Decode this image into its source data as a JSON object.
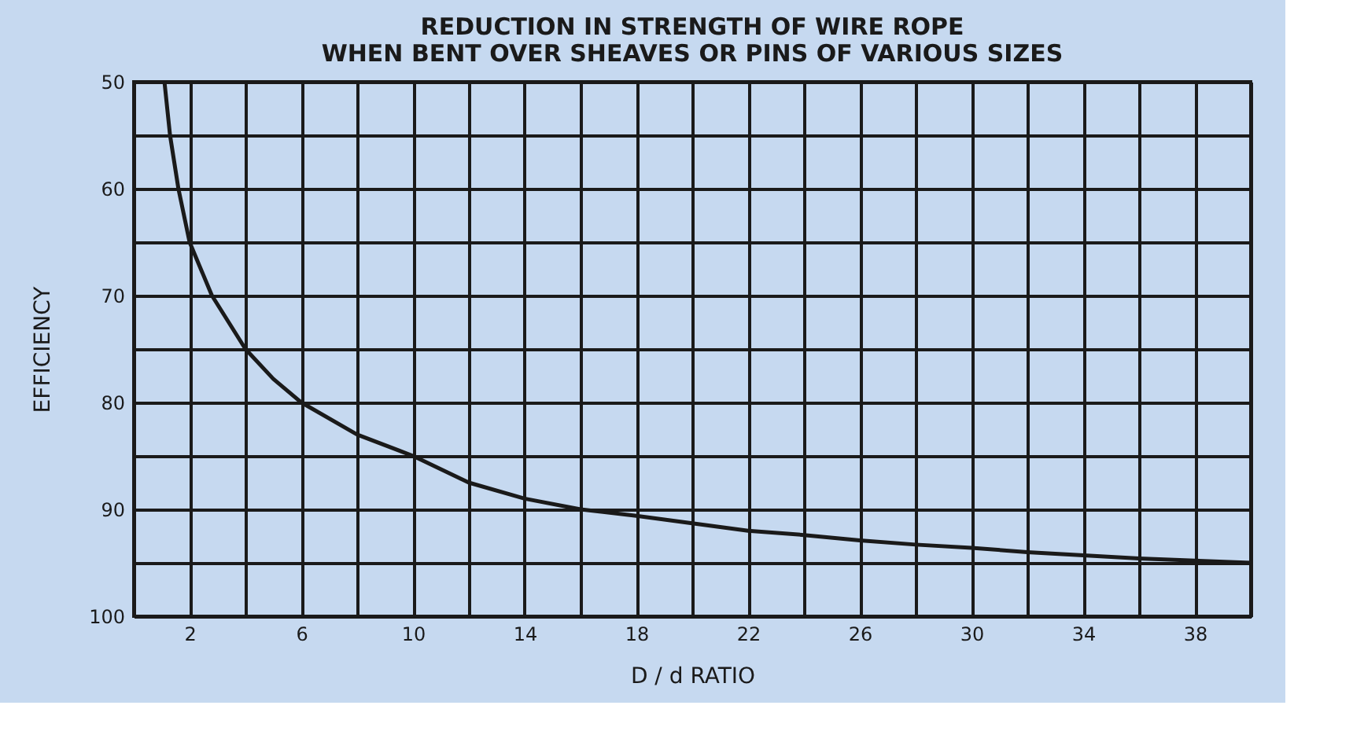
{
  "chart_data": {
    "type": "line",
    "title": [
      "REDUCTION IN STRENGTH OF WIRE ROPE",
      "WHEN BENT OVER SHEAVES OR PINS OF VARIOUS SIZES"
    ],
    "xlabel": "D / d RATIO",
    "ylabel": "EFFICIENCY",
    "series": [
      {
        "color": "#1a1a1a",
        "x": [
          1.1,
          1.3,
          1.6,
          2,
          2.8,
          4,
          5,
          6,
          8,
          10,
          12,
          14,
          16,
          18,
          20,
          22,
          24,
          26,
          28,
          30,
          32,
          34,
          36,
          38,
          40
        ],
        "values": [
          50,
          55,
          60,
          65,
          70,
          75,
          77.8,
          80,
          83,
          85,
          87.5,
          89,
          90,
          90.6,
          91.3,
          92,
          92.4,
          92.9,
          93.3,
          93.6,
          94,
          94.3,
          94.6,
          94.8,
          95
        ]
      }
    ],
    "xlim": [
      0,
      40
    ],
    "ylim": [
      100,
      50
    ],
    "xticks": [
      {
        "value": 0,
        "label": null
      },
      2,
      {
        "value": 4,
        "label": null
      },
      6,
      {
        "value": 8,
        "label": null
      },
      10,
      {
        "value": 12,
        "label": null
      },
      14,
      {
        "value": 16,
        "label": null
      },
      18,
      {
        "value": 20,
        "label": null
      },
      22,
      {
        "value": 24,
        "label": null
      },
      26,
      {
        "value": 28,
        "label": null
      },
      30,
      {
        "value": 32,
        "label": null
      },
      34,
      {
        "value": 36,
        "label": null
      },
      38,
      {
        "value": 40,
        "label": null
      }
    ],
    "yticks": [
      50,
      {
        "value": 55,
        "label": null
      },
      60,
      {
        "value": 65,
        "label": null
      },
      70,
      {
        "value": 75,
        "label": null
      },
      80,
      {
        "value": 85,
        "label": null
      },
      90,
      {
        "value": 95,
        "label": null
      },
      100
    ],
    "grid": true,
    "marker": "none",
    "line_style": "solid"
  }
}
